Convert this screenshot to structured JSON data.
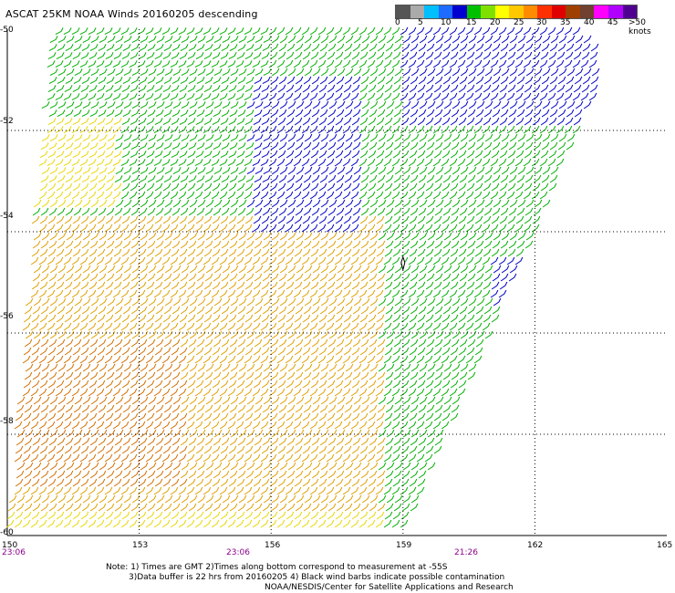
{
  "title": "ASCAT 25KM NOAA Winds 20160205 descending",
  "colorbar": {
    "labels": [
      "0",
      "5",
      "10",
      "15",
      "20",
      "25",
      "30",
      "35",
      "40",
      "45",
      ">50 knots"
    ],
    "colors": [
      "#555555",
      "#aaaaaa",
      "#00bfff",
      "#1e6cff",
      "#0000d0",
      "#00c000",
      "#7fe000",
      "#ffff00",
      "#ffc800",
      "#ff8c00",
      "#ff3000",
      "#e00000",
      "#a04000",
      "#704030",
      "#ff00ff",
      "#b000ff",
      "#500090"
    ]
  },
  "map": {
    "lat_labels": [
      "-50",
      "-52",
      "-54",
      "-56",
      "-58",
      "-60"
    ],
    "lon_labels": [
      "150",
      "153",
      "156",
      "159",
      "162",
      "165"
    ],
    "times": [
      "23:06",
      "23:06",
      "21:26"
    ]
  },
  "notes": {
    "line1": "Note: 1) Times are GMT 2)Times along bottom correspond to measurement at -55S",
    "line2": "3)Data buffer is 22 hrs from 20160205 4) Black wind barbs indicate possible contamination",
    "line3": "NOAA/NESDIS/Center for Satellite Applications and Research"
  }
}
